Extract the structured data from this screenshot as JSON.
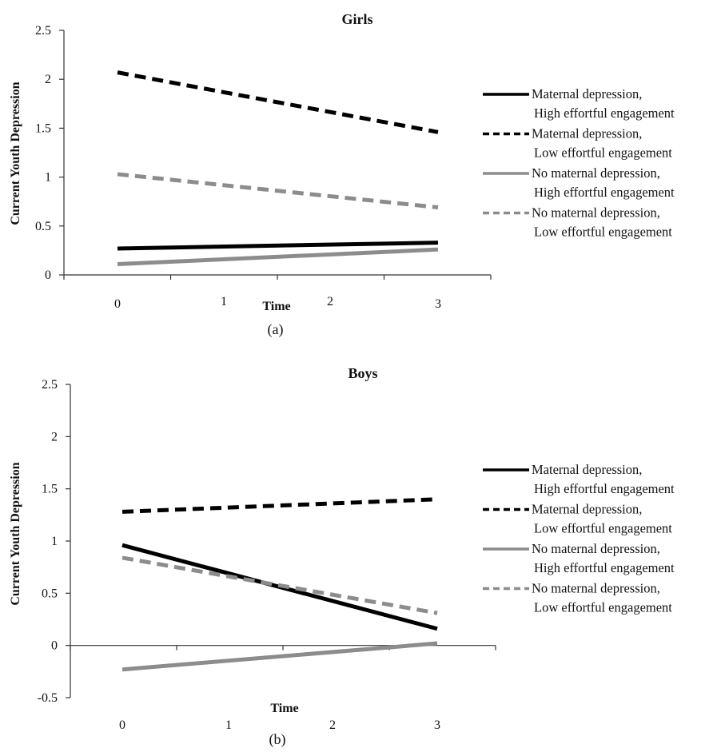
{
  "chart_data": [
    {
      "type": "line",
      "title": "Girls",
      "caption": "(a)",
      "xlabel": "Time",
      "ylabel": "Current Youth Depression",
      "x": [
        0,
        3
      ],
      "x_ticks": [
        "0",
        "1",
        "2",
        "3"
      ],
      "y_ticks": [
        "0",
        "0.5",
        "1",
        "1.5",
        "2",
        "2.5"
      ],
      "ylim": [
        0,
        2.5
      ],
      "grid": false,
      "legend_position": "right",
      "series": [
        {
          "name": "Maternal depression,\nHigh effortful engagement",
          "values": [
            0.27,
            0.33
          ],
          "color": "#000000",
          "style": "solid"
        },
        {
          "name": "Maternal depression,\nLow effortful engagement",
          "values": [
            2.07,
            1.46
          ],
          "color": "#000000",
          "style": "dashed"
        },
        {
          "name": "No maternal depression,\nHigh effortful engagement",
          "values": [
            0.11,
            0.26
          ],
          "color": "#8c8c8c",
          "style": "solid"
        },
        {
          "name": "No maternal depression,\nLow effortful engagement",
          "values": [
            1.03,
            0.69
          ],
          "color": "#8c8c8c",
          "style": "dashed"
        }
      ]
    },
    {
      "type": "line",
      "title": "Boys",
      "caption": "(b)",
      "xlabel": "Time",
      "ylabel": "Current Youth Depression",
      "x": [
        0,
        3
      ],
      "x_ticks": [
        "0",
        "1",
        "2",
        "3"
      ],
      "y_ticks": [
        "-0.5",
        "0",
        "0.5",
        "1",
        "1.5",
        "2",
        "2.5"
      ],
      "ylim": [
        -0.5,
        2.5
      ],
      "grid": false,
      "legend_position": "right",
      "series": [
        {
          "name": "Maternal depression,\nHigh effortful engagement",
          "values": [
            0.96,
            0.16
          ],
          "color": "#000000",
          "style": "solid"
        },
        {
          "name": "Maternal depression,\nLow effortful engagement",
          "values": [
            1.28,
            1.4
          ],
          "color": "#000000",
          "style": "dashed"
        },
        {
          "name": "No maternal depression,\nHigh effortful engagement",
          "values": [
            -0.23,
            0.02
          ],
          "color": "#8c8c8c",
          "style": "solid"
        },
        {
          "name": "No maternal depression,\nLow effortful engagement",
          "values": [
            0.84,
            0.31
          ],
          "color": "#8c8c8c",
          "style": "dashed"
        }
      ]
    }
  ]
}
